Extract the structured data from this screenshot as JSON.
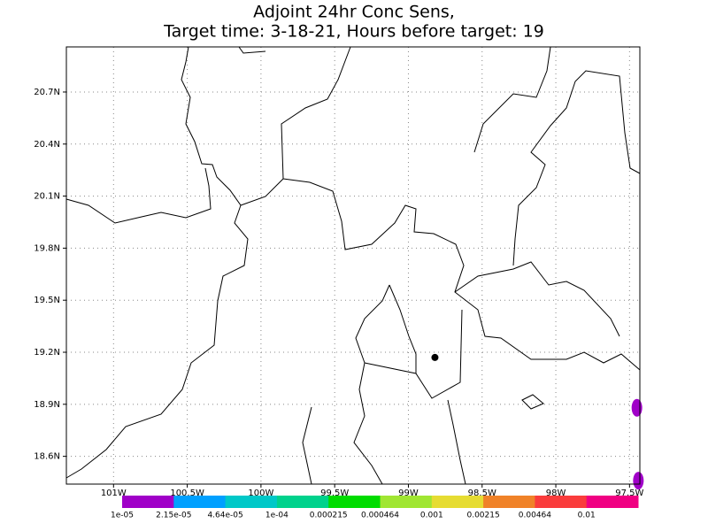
{
  "map": {
    "title": [
      "Adjoint 24hr Conc Sens,",
      "Target time: 3-18-21, Hours before target: 19"
    ],
    "xlim": [
      -101.32,
      -97.43
    ],
    "ylim": [
      18.44,
      20.96
    ],
    "lon_ticks": [
      {
        "value": -101,
        "label": "101W"
      },
      {
        "value": -100.5,
        "label": "100.5W"
      },
      {
        "value": -100,
        "label": "100W"
      },
      {
        "value": -99.5,
        "label": "99.5W"
      },
      {
        "value": -99,
        "label": "99W"
      },
      {
        "value": -98.5,
        "label": "98.5W"
      },
      {
        "value": -98,
        "label": "98W"
      },
      {
        "value": -97.5,
        "label": "97.5W"
      }
    ],
    "lat_ticks": [
      {
        "value": 18.6,
        "label": "18.6N"
      },
      {
        "value": 18.9,
        "label": "18.9N"
      },
      {
        "value": 19.2,
        "label": "19.2N"
      },
      {
        "value": 19.5,
        "label": "19.5N"
      },
      {
        "value": 19.8,
        "label": "19.8N"
      },
      {
        "value": 20.1,
        "label": "20.1N"
      },
      {
        "value": 20.4,
        "label": "20.4N"
      },
      {
        "value": 20.7,
        "label": "20.7N"
      }
    ],
    "grid": true,
    "target": {
      "lon": -98.82,
      "lat": 19.17
    },
    "cells": [
      {
        "lon": -97.45,
        "lat": 18.88,
        "level": 0
      },
      {
        "lon": -97.44,
        "lat": 18.46,
        "level": 0
      }
    ],
    "colorbar": {
      "colors": [
        "#a000c8",
        "#00a0ff",
        "#00c8c8",
        "#00d28c",
        "#00dc00",
        "#a0e632",
        "#e6dc32",
        "#f08228",
        "#fa3c3c",
        "#f00082"
      ],
      "labels": [
        "1e-05",
        "2.15e-05",
        "4.64e-05",
        "1e-04",
        "0.000215",
        "0.000464",
        "0.001",
        "0.00215",
        "0.00464",
        "0.01"
      ]
    }
  }
}
